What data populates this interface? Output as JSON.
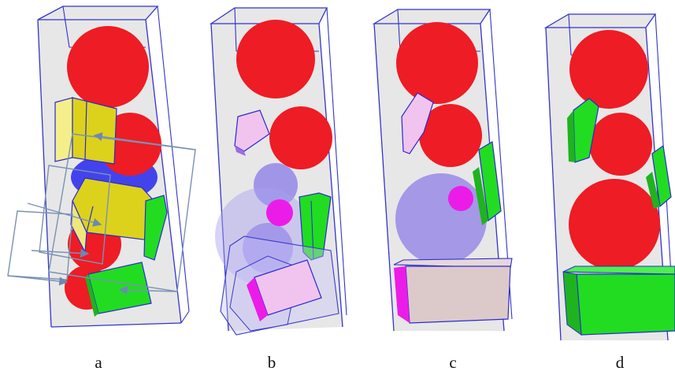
{
  "panels": [
    {
      "label": "a"
    },
    {
      "label": "b"
    },
    {
      "label": "c"
    },
    {
      "label": "d"
    }
  ],
  "colors": {
    "container_fill": "#d9d9d9",
    "container_edge": "#2a2ad0",
    "sphere": "#ee1c24",
    "sphere_ghost": "#8a7ae8",
    "sphere_magenta": "#ec1ce8",
    "box_yellow": "#dcd21c",
    "box_green": "#22dc22",
    "box_pink": "#f0c4ee",
    "box_beige": "#dccaca",
    "arrow": "#7a92b4"
  }
}
